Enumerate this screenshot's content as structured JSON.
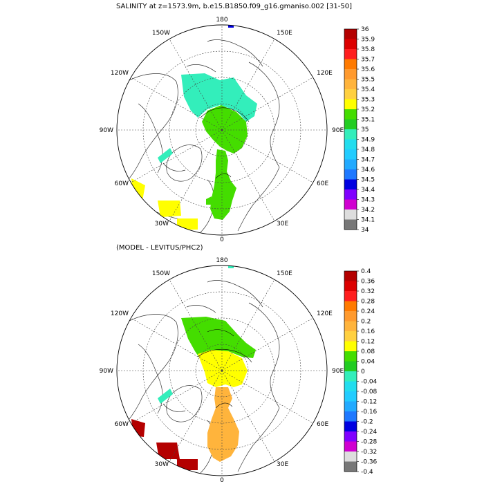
{
  "figure": {
    "title": "SALINITY at z=1573.9m, b.e15.B1850.f09_g16.gmaniso.002 [31-50]",
    "diff_title": "(MODEL - LEVITUS/PHC2)"
  },
  "longitude_labels": {
    "top": "180",
    "bottom": "0",
    "left": "90W",
    "right": "90E",
    "w150": "150W",
    "e150": "150E",
    "w120": "120W",
    "e120": "120E",
    "w60": "60W",
    "e60": "60E",
    "w30": "30W",
    "e30": "30E"
  },
  "colorbars": [
    {
      "labels": [
        "36",
        "35.9",
        "35.8",
        "35.7",
        "35.6",
        "35.5",
        "35.4",
        "35.3",
        "35.2",
        "35.1",
        "35",
        "34.9",
        "34.8",
        "34.7",
        "34.6",
        "34.5",
        "34.4",
        "34.3",
        "34.2",
        "34.1",
        "34"
      ],
      "colors": [
        "#b40000",
        "#dc0000",
        "#ff1e1e",
        "#ff7a00",
        "#ff9a2e",
        "#ffb43c",
        "#ffd040",
        "#ffff00",
        "#44dd00",
        "#22cc22",
        "#33eebb",
        "#22ddee",
        "#22ccff",
        "#22aaff",
        "#1e78ff",
        "#0000e0",
        "#8000ff",
        "#d000d0",
        "#dddddd",
        "#777777"
      ]
    },
    {
      "labels": [
        "0.4",
        "0.36",
        "0.32",
        "0.28",
        "0.24",
        "0.2",
        "0.16",
        "0.12",
        "0.08",
        "0.04",
        "0",
        "-0.04",
        "-0.08",
        "-0.12",
        "-0.16",
        "-0.2",
        "-0.24",
        "-0.28",
        "-0.32",
        "-0.36",
        "-0.4"
      ],
      "colors": [
        "#b40000",
        "#dc0000",
        "#ff1e1e",
        "#ff7a00",
        "#ff9a2e",
        "#ffb43c",
        "#ffd040",
        "#ffff00",
        "#44dd00",
        "#22cc22",
        "#33eebb",
        "#22ddee",
        "#22ccff",
        "#22aaff",
        "#1e78ff",
        "#0000e0",
        "#8000ff",
        "#d000d0",
        "#dddddd",
        "#777777"
      ]
    }
  ]
}
